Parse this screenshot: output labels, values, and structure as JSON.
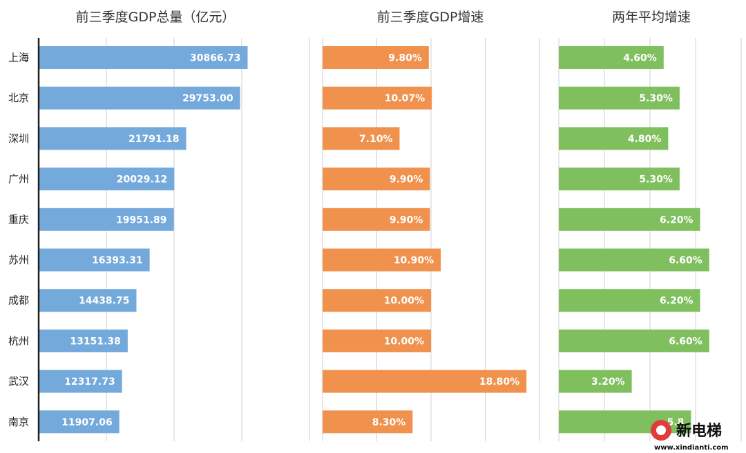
{
  "chart_data": {
    "type": "bar",
    "orientation": "horizontal",
    "categories": [
      "上海",
      "北京",
      "深圳",
      "广州",
      "重庆",
      "苏州",
      "成都",
      "杭州",
      "武汉",
      "南京"
    ],
    "panels": [
      {
        "title": "前三季度GDP总量（亿元）",
        "color": "#74a9dc",
        "xlim": [
          0,
          40000
        ],
        "values": [
          30866.73,
          29753.0,
          21791.18,
          20029.12,
          19951.89,
          16393.31,
          14438.75,
          13151.38,
          12317.73,
          11907.06
        ],
        "labels": [
          "30866.73",
          "29753.00",
          "21791.18",
          "20029.12",
          "19951.89",
          "16393.31",
          "14438.75",
          "13151.38",
          "12317.73",
          "11907.06"
        ]
      },
      {
        "title": "前三季度GDP增速",
        "color": "#f0924e",
        "xlim": [
          0,
          20
        ],
        "values": [
          9.8,
          10.07,
          7.1,
          9.9,
          9.9,
          10.9,
          10.0,
          10.0,
          18.8,
          8.3
        ],
        "labels": [
          "9.80%",
          "10.07%",
          "7.10%",
          "9.90%",
          "9.90%",
          "10.90%",
          "10.00%",
          "10.00%",
          "18.80%",
          "8.30%"
        ]
      },
      {
        "title": "两年平均增速",
        "color": "#7fbf5e",
        "xlim": [
          0,
          8
        ],
        "values": [
          4.6,
          5.3,
          4.8,
          5.3,
          6.2,
          6.6,
          6.2,
          6.6,
          3.2,
          5.8
        ],
        "labels": [
          "4.60%",
          "5.30%",
          "4.80%",
          "5.30%",
          "6.20%",
          "6.60%",
          "6.20%",
          "6.60%",
          "3.20%",
          "5.8"
        ]
      }
    ],
    "grid": true,
    "legend": "none"
  },
  "watermark": {
    "text": "新电梯",
    "url": "www.xindianti.com"
  }
}
